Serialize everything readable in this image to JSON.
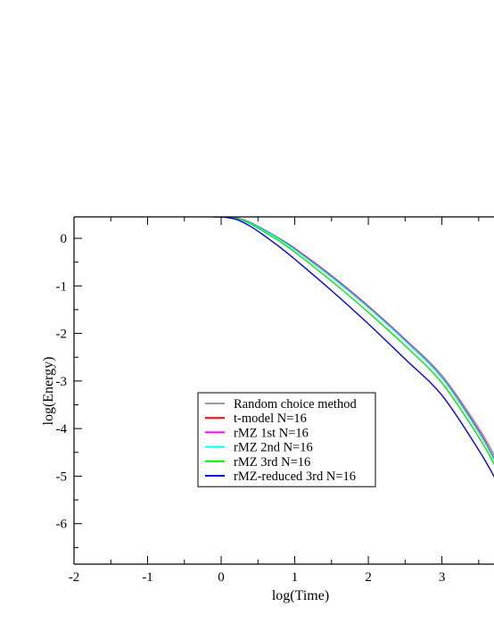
{
  "chart_data": {
    "type": "line",
    "xlabel": "log(Time)",
    "ylabel": "log(Energy)",
    "xlim": [
      -2,
      3.72
    ],
    "ylim": [
      -6.85,
      0.45
    ],
    "x_ticks": [
      "-2",
      "-1",
      "0",
      "1",
      "2",
      "3"
    ],
    "y_ticks": [
      "0",
      "-1",
      "-2",
      "-3",
      "-4",
      "-5",
      "-6"
    ],
    "grid": false,
    "legend_position": "lower-left",
    "series": [
      {
        "name": "Random choice method",
        "color": "#999999",
        "x": [
          -0.1,
          0.0,
          0.2,
          0.4,
          0.6,
          0.8,
          1.0,
          1.5,
          2.0,
          2.5,
          3.0,
          3.5,
          3.72
        ],
        "y": [
          0.45,
          0.45,
          0.43,
          0.33,
          0.17,
          -0.01,
          -0.21,
          -0.78,
          -1.42,
          -2.12,
          -2.88,
          -3.98,
          -4.58
        ]
      },
      {
        "name": "t-model N=16",
        "color": "#ff0000",
        "x": [
          -0.1,
          0.0,
          0.2,
          0.4,
          0.6,
          0.8,
          1.0,
          1.5,
          2.0,
          2.5,
          3.0,
          3.5,
          3.72
        ],
        "y": [
          0.45,
          0.45,
          0.43,
          0.33,
          0.16,
          -0.02,
          -0.22,
          -0.8,
          -1.44,
          -2.14,
          -2.92,
          -4.04,
          -4.66
        ]
      },
      {
        "name": "rMZ 1st N=16",
        "color": "#ff00ff",
        "x": [
          -0.1,
          0.0,
          0.2,
          0.4,
          0.6,
          0.8,
          1.0,
          1.5,
          2.0,
          2.5,
          3.0,
          3.5,
          3.72
        ],
        "y": [
          0.45,
          0.45,
          0.43,
          0.32,
          0.16,
          -0.03,
          -0.23,
          -0.81,
          -1.45,
          -2.15,
          -2.93,
          -4.06,
          -4.68
        ]
      },
      {
        "name": "rMZ 2nd N=16",
        "color": "#00ffff",
        "x": [
          -0.1,
          0.0,
          0.2,
          0.4,
          0.6,
          0.8,
          1.0,
          1.5,
          2.0,
          2.5,
          3.0,
          3.5,
          3.72
        ],
        "y": [
          0.45,
          0.45,
          0.42,
          0.32,
          0.15,
          -0.03,
          -0.24,
          -0.82,
          -1.46,
          -2.16,
          -2.94,
          -4.08,
          -4.7
        ]
      },
      {
        "name": "rMZ 3rd N=16",
        "color": "#00ee00",
        "x": [
          -0.1,
          0.0,
          0.2,
          0.4,
          0.6,
          0.8,
          1.0,
          1.5,
          2.0,
          2.5,
          3.0,
          3.5,
          3.72
        ],
        "y": [
          0.45,
          0.45,
          0.42,
          0.3,
          0.12,
          -0.07,
          -0.29,
          -0.9,
          -1.56,
          -2.26,
          -3.04,
          -4.18,
          -4.78
        ]
      },
      {
        "name": "rMZ-reduced 3rd N=16",
        "color": "#0000ff",
        "x": [
          -0.1,
          0.0,
          0.2,
          0.4,
          0.6,
          0.8,
          1.0,
          1.5,
          2.0,
          2.5,
          3.0,
          3.5,
          3.72
        ],
        "y": [
          0.45,
          0.45,
          0.4,
          0.25,
          0.04,
          -0.19,
          -0.44,
          -1.1,
          -1.8,
          -2.54,
          -3.3,
          -4.45,
          -5.04
        ]
      }
    ]
  }
}
